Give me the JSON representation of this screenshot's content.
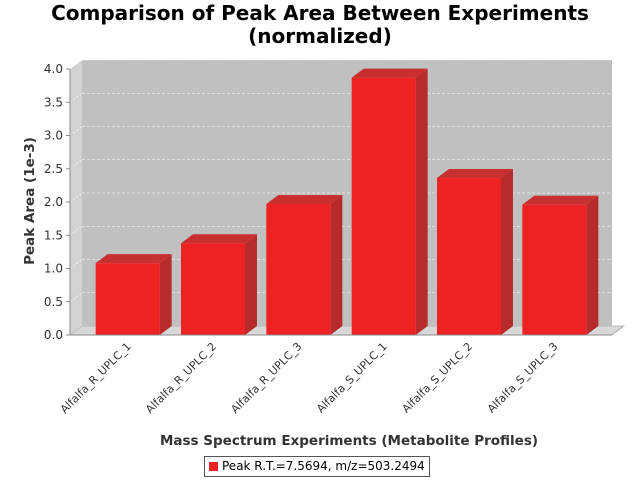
{
  "chart_data": {
    "type": "bar",
    "title_lines": [
      "Comparison of Peak Area Between Experiments",
      "(normalized)"
    ],
    "xlabel": "Mass Spectrum Experiments (Metabolite Profiles)",
    "ylabel": "Peak Area (1e-3)",
    "categories": [
      "Alfalfa_R_UPLC_1",
      "Alfalfa_R_UPLC_2",
      "Alfalfa_R_UPLC_3",
      "Alfalfa_S_UPLC_1",
      "Alfalfa_S_UPLC_2",
      "Alfalfa_S_UPLC_3"
    ],
    "series": [
      {
        "name": "Peak R.T.=7.5694, m/z=503.2494",
        "values": [
          1.08,
          1.38,
          1.97,
          3.87,
          2.36,
          1.96
        ],
        "color": "#ee2222"
      }
    ],
    "ylim": [
      0.0,
      4.0
    ],
    "yticks": [
      "0.0",
      "0.5",
      "1.0",
      "1.5",
      "2.0",
      "2.5",
      "3.0",
      "3.5",
      "4.0"
    ],
    "grid": true,
    "legend_position": "bottom",
    "plot_background": "#c0c0c0"
  }
}
